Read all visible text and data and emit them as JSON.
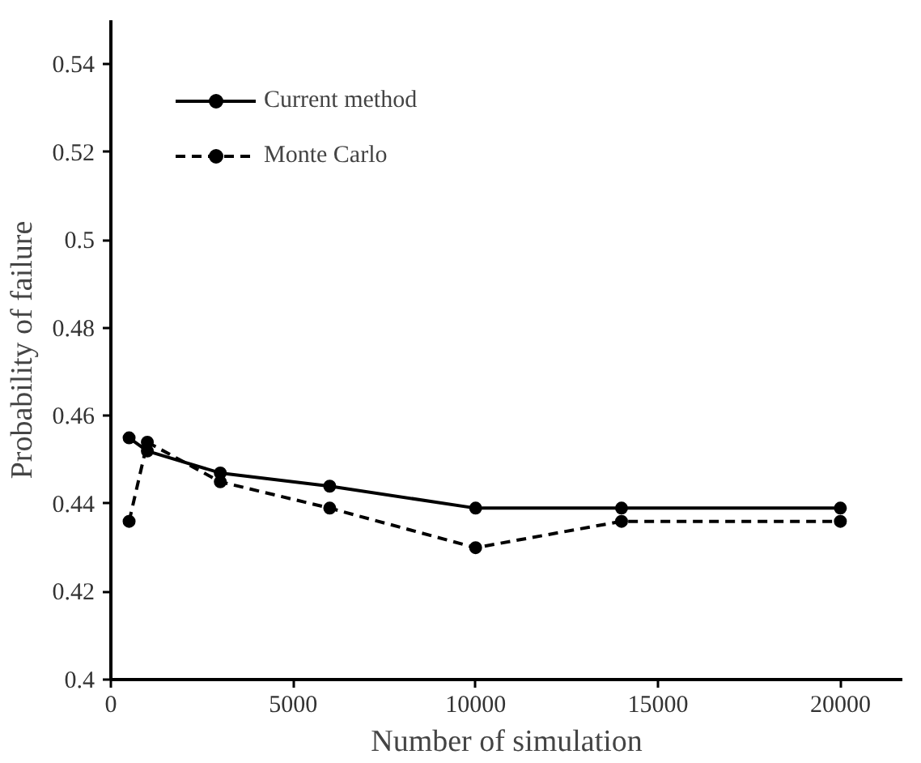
{
  "chart_data": {
    "type": "line",
    "xlabel": "Number of simulation",
    "ylabel": "Probability of failure",
    "x": [
      500,
      1000,
      3000,
      6000,
      10000,
      14000,
      20000
    ],
    "series": [
      {
        "name": "Current method",
        "color": "#000000",
        "line_style": "solid",
        "values": [
          0.455,
          0.452,
          0.447,
          0.444,
          0.439,
          0.439,
          0.439
        ]
      },
      {
        "name": "Monte Carlo",
        "color": "#000000",
        "line_style": "dashed",
        "values": [
          0.436,
          0.454,
          0.445,
          0.439,
          0.43,
          0.436,
          0.436
        ]
      }
    ],
    "xlim": [
      0,
      21700
    ],
    "ylim": [
      0.4,
      0.55
    ],
    "xticks": [
      0,
      5000,
      10000,
      15000,
      20000
    ],
    "yticks": [
      0.4,
      0.42,
      0.44,
      0.46,
      0.48,
      0.5,
      0.52,
      0.54
    ],
    "grid": false,
    "legend": "top left",
    "marker": "circle"
  }
}
